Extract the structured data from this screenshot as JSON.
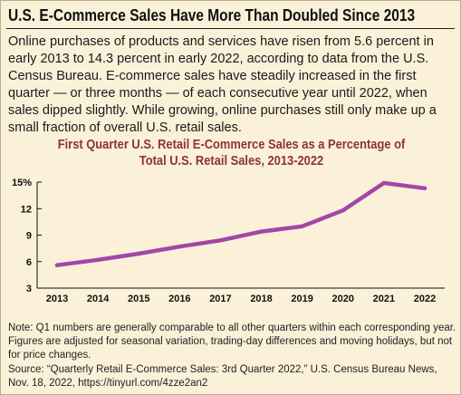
{
  "colors": {
    "background": "#fbf1d9",
    "line": "#a247a8",
    "title": "#8c3338",
    "text": "#111111"
  },
  "headline": "U.S. E-Commerce Sales Have More Than Doubled Since 2013",
  "intro": "Online purchases of products and services have risen from 5.6 percent in early 2013 to 14.3 percent in early 2022, according to data from the U.S. Census Bureau. E-commerce sales have steadily increased in the first quarter — or three months — of each consecutive year until 2022, when sales dipped slightly. While growing, online purchases still only make up a small fraction of overall U.S. retail sales.",
  "chart_title_line1": "First Quarter U.S. Retail E-Commerce Sales as a Percentage of",
  "chart_title_line2": "Total U.S. Retail Sales, 2013-2022",
  "note": "Note: Q1 numbers are generally comparable to all other quarters within each corresponding year. Figures are adjusted for seasonal variation, trading-day differences and moving holidays, but not for price changes.",
  "source": "Source: “Quarterly Retail E-Commerce Sales: 3rd Quarter 2022,” U.S. Census Bureau News, Nov. 18, 2022, https://tinyurl.com/4zze2an2",
  "chart_data": {
    "type": "line",
    "title": "First Quarter U.S. Retail E-Commerce Sales as a Percentage of Total U.S. Retail Sales, 2013-2022",
    "xlabel": "",
    "ylabel": "",
    "x": [
      "2013",
      "2014",
      "2015",
      "2016",
      "2017",
      "2018",
      "2019",
      "2020",
      "2021",
      "2022"
    ],
    "series": [
      {
        "values": [
          5.6,
          6.2,
          6.9,
          7.7,
          8.4,
          9.4,
          10.0,
          11.8,
          14.9,
          14.3
        ]
      }
    ],
    "ylim": [
      3,
      15
    ],
    "yticks": [
      3,
      6,
      9,
      12,
      15
    ],
    "ytick_labels": [
      "3",
      "6",
      "9",
      "12",
      "15%"
    ],
    "grid": false,
    "legend": "none"
  }
}
